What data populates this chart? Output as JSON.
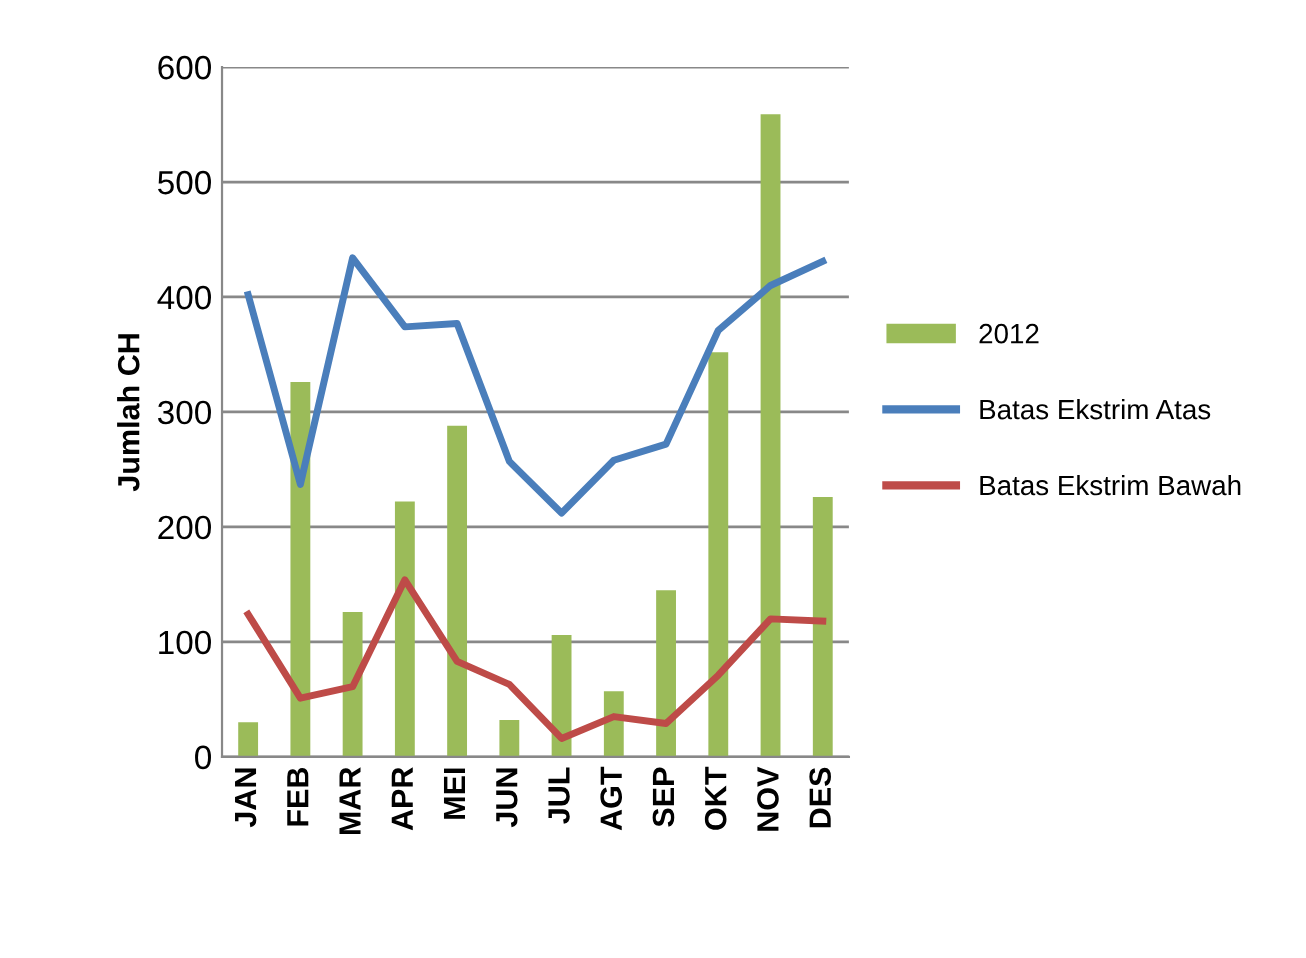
{
  "chart_data": {
    "type": "bar",
    "ylabel": "Jumlah CH",
    "categories": [
      "JAN",
      "FEB",
      "MAR",
      "APR",
      "MEI",
      "JUN",
      "JUL",
      "AGT",
      "SEP",
      "OKT",
      "NOV",
      "DES"
    ],
    "series": [
      {
        "name": "2012",
        "color": "#9bbb59",
        "values": [
          30,
          326,
          126,
          222,
          288,
          32,
          106,
          57,
          145,
          352,
          559,
          226
        ]
      },
      {
        "name": "Batas Ekstrim Atas",
        "type": "line",
        "color": "#4a7ebb",
        "values": [
          402,
          237,
          434,
          374,
          377,
          257,
          212,
          258,
          272,
          371,
          410,
          431
        ]
      },
      {
        "name": "Batas Ekstrim Bawah",
        "type": "line",
        "color": "#be4b48",
        "values": [
          124,
          51,
          61,
          154,
          83,
          63,
          16,
          35,
          29,
          71,
          120,
          118
        ]
      }
    ],
    "ylim": [
      0,
      600
    ],
    "yticks": [
      0,
      100,
      200,
      300,
      400,
      500,
      600
    ],
    "grid": "y",
    "legend": "right"
  }
}
